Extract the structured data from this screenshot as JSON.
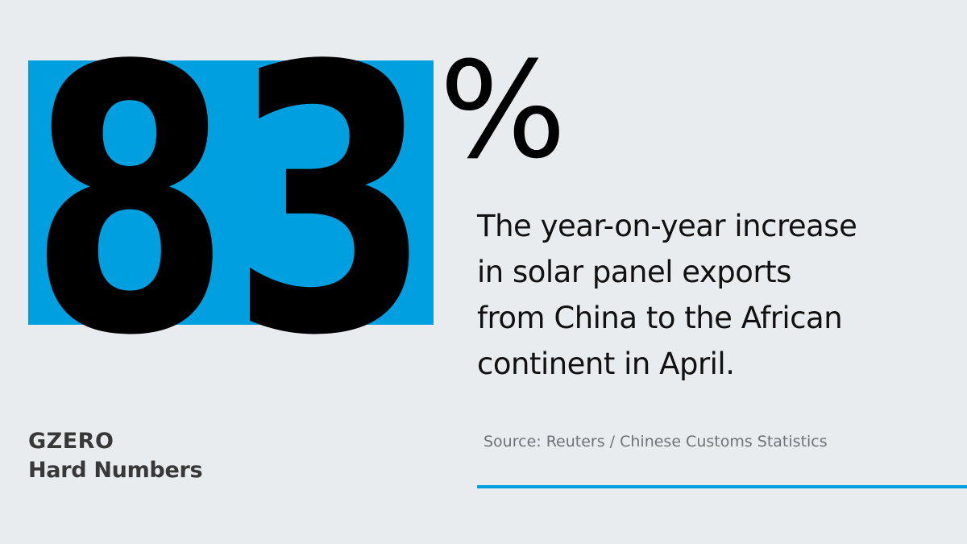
{
  "stat": {
    "number": "83",
    "unit": "%"
  },
  "description": {
    "lines": [
      "The year-on-year increase",
      "in solar panel exports",
      "from China to the African",
      "continent in April."
    ]
  },
  "source": "Source: Reuters / Chinese Customs Statistics",
  "brand": {
    "name": "GZERO",
    "series": "Hard Numbers"
  },
  "colors": {
    "accent": "#009fdf",
    "background": "#e8ecef",
    "text": "#111111"
  }
}
